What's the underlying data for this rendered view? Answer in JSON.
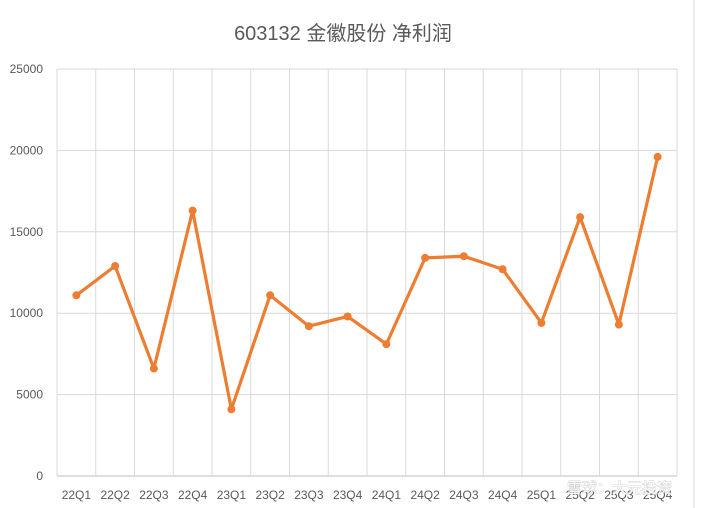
{
  "chart_data": {
    "type": "line",
    "title": "603132 金徽股份 净利润",
    "categories": [
      "22Q1",
      "22Q2",
      "22Q3",
      "22Q4",
      "23Q1",
      "23Q2",
      "23Q3",
      "23Q4",
      "24Q1",
      "24Q2",
      "24Q3",
      "24Q4",
      "25Q1",
      "25Q2",
      "25Q3",
      "25Q4"
    ],
    "series": [
      {
        "values": [
          11100,
          12900,
          6600,
          16300,
          4100,
          11100,
          9200,
          9800,
          8100,
          13400,
          13500,
          12700,
          9400,
          15900,
          9300,
          19600
        ]
      }
    ],
    "ylim": [
      0,
      25000
    ],
    "yticks": [
      0,
      5000,
      10000,
      15000,
      20000,
      25000
    ],
    "grid": true,
    "legend": "none",
    "line_color": "#ED7D31"
  },
  "watermark": "雪球：大元投资"
}
